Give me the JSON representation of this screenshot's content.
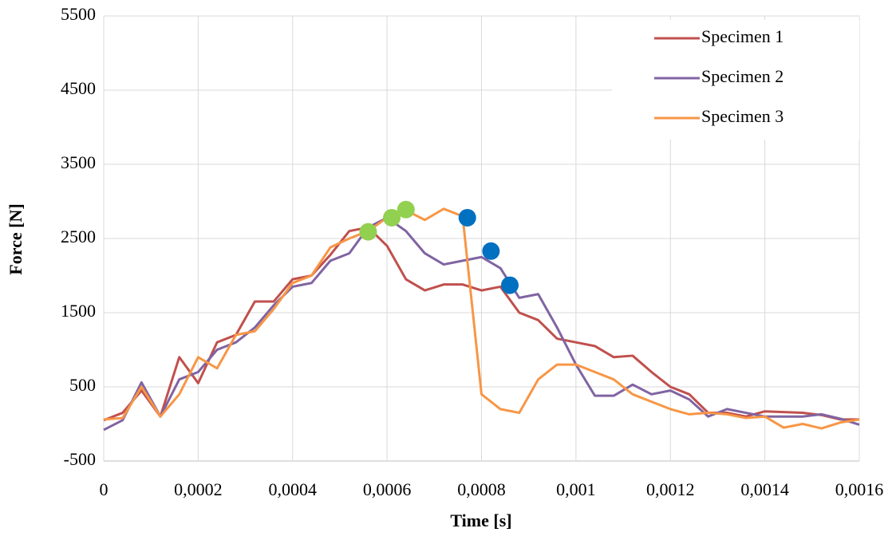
{
  "chart_data": {
    "type": "line",
    "x_label": "Time [s]",
    "y_label": "Force [N]",
    "x": [
      0,
      4e-05,
      8e-05,
      0.00012,
      0.00016,
      0.0002,
      0.00024,
      0.00028,
      0.00032,
      0.00036,
      0.0004,
      0.00044,
      0.00048,
      0.00052,
      0.00056,
      0.0006,
      0.00064,
      0.00068,
      0.00072,
      0.00076,
      0.0008,
      0.00084,
      0.00088,
      0.00092,
      0.00096,
      0.001,
      0.00104,
      0.00108,
      0.00112,
      0.00116,
      0.0012,
      0.00124,
      0.00128,
      0.00132,
      0.00136,
      0.0014,
      0.00144,
      0.00148,
      0.00152,
      0.00156,
      0.0016
    ],
    "series": [
      {
        "name": "Specimen 1",
        "color": "#c0504d",
        "values": [
          50,
          150,
          450,
          100,
          900,
          550,
          1100,
          1200,
          1650,
          1650,
          1950,
          2000,
          2280,
          2600,
          2650,
          2400,
          1950,
          1800,
          1880,
          1880,
          1800,
          1850,
          1500,
          1400,
          1150,
          1100,
          1050,
          900,
          920,
          700,
          500,
          400,
          150,
          150,
          100,
          170,
          160,
          150,
          120,
          60,
          60
        ]
      },
      {
        "name": "Specimen 2",
        "color": "#8064a2",
        "values": [
          -80,
          50,
          560,
          100,
          600,
          700,
          1000,
          1100,
          1300,
          1600,
          1850,
          1900,
          2200,
          2300,
          2650,
          2780,
          2600,
          2300,
          2150,
          2200,
          2250,
          2100,
          1700,
          1750,
          1300,
          800,
          380,
          380,
          530,
          400,
          450,
          330,
          100,
          200,
          150,
          100,
          100,
          100,
          130,
          70,
          -10
        ]
      },
      {
        "name": "Specimen 3",
        "color": "#f79646",
        "values": [
          60,
          80,
          500,
          100,
          400,
          900,
          750,
          1200,
          1250,
          1550,
          1900,
          2000,
          2380,
          2500,
          2600,
          2780,
          2880,
          2750,
          2900,
          2800,
          400,
          200,
          150,
          600,
          800,
          800,
          700,
          600,
          400,
          300,
          200,
          130,
          150,
          130,
          80,
          100,
          -50,
          0,
          -60,
          20,
          60
        ]
      }
    ],
    "markers": [
      {
        "color": "#92d050",
        "x": [
          0.00056,
          0.00061,
          0.00064
        ],
        "y": [
          2590,
          2780,
          2890
        ]
      },
      {
        "color": "#0070c0",
        "x": [
          0.00077,
          0.00082,
          0.00086
        ],
        "y": [
          2780,
          2330,
          1870
        ]
      }
    ],
    "xlim": [
      0,
      0.0016
    ],
    "ylim": [
      -500,
      5500
    ],
    "xticks": [
      0,
      {
        "value": 0.0002,
        "label": "0,0002"
      },
      {
        "value": 0.0004,
        "label": "0,0004"
      },
      {
        "value": 0.0006,
        "label": "0,0006"
      },
      {
        "value": 0.0008,
        "label": "0,0008"
      },
      {
        "value": 0.001,
        "label": "0,001"
      },
      {
        "value": 0.0012,
        "label": "0,0012"
      },
      {
        "value": 0.0014,
        "label": "0,0014"
      },
      {
        "value": 0.0016,
        "label": "0,0016"
      }
    ],
    "yticks": [
      -500,
      500,
      1500,
      2500,
      3500,
      4500,
      5500
    ],
    "grid": true,
    "legend": "top-right"
  }
}
